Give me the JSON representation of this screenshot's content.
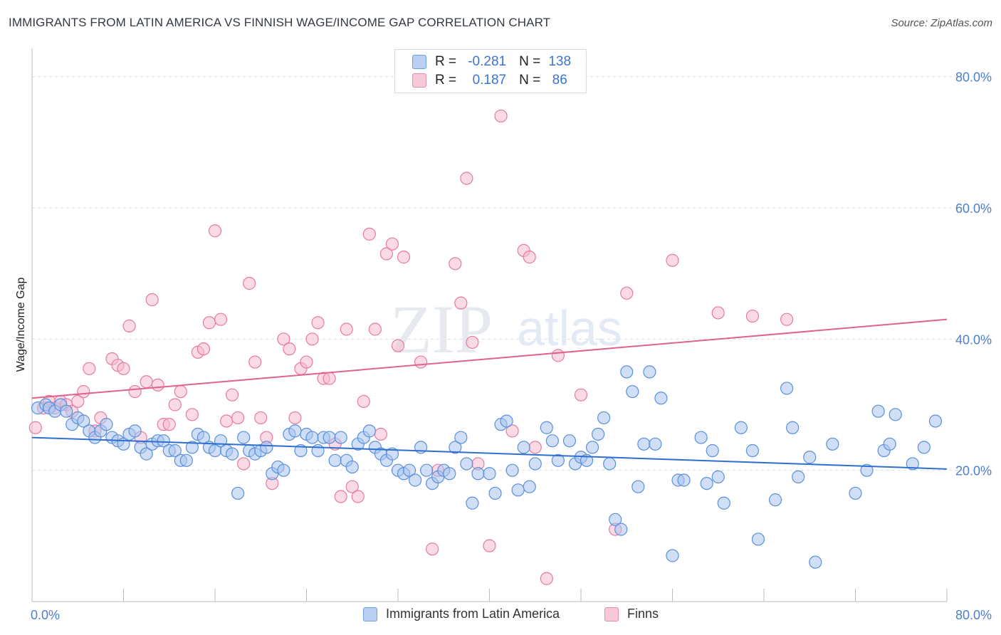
{
  "title": "IMMIGRANTS FROM LATIN AMERICA VS FINNISH WAGE/INCOME GAP CORRELATION CHART",
  "source": "Source: ZipAtlas.com",
  "watermark": {
    "zip": "ZIP",
    "atlas": "atlas"
  },
  "colors": {
    "blue_fill": "#a9c4ee",
    "blue_stroke": "#5b8fdb",
    "blue_line": "#2f6fd0",
    "pink_fill": "#f5bccd",
    "pink_stroke": "#e87a9f",
    "pink_line": "#e0628e",
    "tick_text": "#4d7fd0",
    "grid": "#dddddd"
  },
  "legend": {
    "rows": [
      {
        "r_label": "R =",
        "r_value": "-0.281",
        "n_label": "N =",
        "n_value": "138"
      },
      {
        "r_label": "R =",
        "r_value": "0.187",
        "n_label": "N =",
        "n_value": "86"
      }
    ]
  },
  "bottom_legend": [
    "Immigrants from Latin America",
    "Finns"
  ],
  "chart_data": {
    "type": "scatter",
    "title": "IMMIGRANTS FROM LATIN AMERICA VS FINNISH WAGE/INCOME GAP CORRELATION CHART",
    "xlabel": "",
    "ylabel": "Wage/Income Gap",
    "xlim": [
      0,
      80
    ],
    "ylim": [
      0,
      83
    ],
    "x_tick_labels": [
      "0.0%",
      "80.0%"
    ],
    "y_ticks": [
      20,
      40,
      60,
      80
    ],
    "y_tick_labels": [
      "20.0%",
      "40.0%",
      "60.0%",
      "80.0%"
    ],
    "grid": "horizontal dashed",
    "legend_position": "top-center",
    "series": [
      {
        "name": "Immigrants from Latin America",
        "r": -0.281,
        "n": 138,
        "trend": {
          "x": [
            0,
            80
          ],
          "y": [
            25.0,
            20.2
          ]
        },
        "points": [
          [
            0.5,
            29.5
          ],
          [
            1.2,
            30
          ],
          [
            1.5,
            29.5
          ],
          [
            2,
            29
          ],
          [
            2.5,
            30
          ],
          [
            3,
            29
          ],
          [
            3.5,
            27
          ],
          [
            4,
            28
          ],
          [
            4.5,
            27.5
          ],
          [
            5,
            26
          ],
          [
            5.5,
            25
          ],
          [
            6,
            26
          ],
          [
            6.5,
            27
          ],
          [
            7,
            25
          ],
          [
            7.5,
            24.5
          ],
          [
            8,
            24
          ],
          [
            8.5,
            25.5
          ],
          [
            9,
            26
          ],
          [
            9.5,
            23.5
          ],
          [
            10,
            22.5
          ],
          [
            10.5,
            24
          ],
          [
            11,
            24.5
          ],
          [
            11.5,
            24.5
          ],
          [
            12,
            23
          ],
          [
            12.5,
            23
          ],
          [
            13,
            21.5
          ],
          [
            13.5,
            21.5
          ],
          [
            14,
            23.5
          ],
          [
            14.5,
            25.5
          ],
          [
            15,
            25
          ],
          [
            15.5,
            23.5
          ],
          [
            16,
            23
          ],
          [
            16.5,
            24.5
          ],
          [
            17,
            23
          ],
          [
            17.5,
            22.5
          ],
          [
            18,
            16.5
          ],
          [
            18.5,
            25
          ],
          [
            19,
            23
          ],
          [
            19.5,
            22.5
          ],
          [
            20,
            23
          ],
          [
            20.5,
            23.5
          ],
          [
            21,
            19.5
          ],
          [
            21.5,
            20.5
          ],
          [
            22,
            20
          ],
          [
            22.5,
            25.5
          ],
          [
            23,
            26
          ],
          [
            23.5,
            23
          ],
          [
            24,
            25.5
          ],
          [
            24.5,
            25
          ],
          [
            25,
            23
          ],
          [
            25.5,
            25
          ],
          [
            26,
            25
          ],
          [
            26.5,
            21.5
          ],
          [
            27,
            25
          ],
          [
            27.5,
            21.5
          ],
          [
            28,
            20.5
          ],
          [
            28.5,
            24
          ],
          [
            29,
            25
          ],
          [
            29.5,
            26
          ],
          [
            30,
            23.5
          ],
          [
            30.5,
            22.5
          ],
          [
            31,
            21.5
          ],
          [
            31.5,
            22.5
          ],
          [
            32,
            20
          ],
          [
            32.5,
            19.5
          ],
          [
            33,
            20
          ],
          [
            33.5,
            18.5
          ],
          [
            34,
            23.5
          ],
          [
            34.5,
            20
          ],
          [
            35,
            18
          ],
          [
            35.5,
            19
          ],
          [
            36,
            20
          ],
          [
            36.5,
            19.5
          ],
          [
            37,
            23.5
          ],
          [
            37.5,
            25
          ],
          [
            38,
            21
          ],
          [
            38.5,
            15
          ],
          [
            39,
            19.5
          ],
          [
            40,
            19.5
          ],
          [
            40.5,
            16.5
          ],
          [
            41,
            27
          ],
          [
            41.5,
            27.5
          ],
          [
            42,
            20
          ],
          [
            42.5,
            17
          ],
          [
            43,
            23.5
          ],
          [
            43.5,
            17.5
          ],
          [
            44,
            21
          ],
          [
            45,
            26.5
          ],
          [
            45.5,
            24.5
          ],
          [
            46,
            21.5
          ],
          [
            47,
            24.5
          ],
          [
            47.5,
            21
          ],
          [
            48,
            22
          ],
          [
            48.5,
            21.5
          ],
          [
            49,
            23.5
          ],
          [
            49.5,
            25.5
          ],
          [
            50,
            28
          ],
          [
            50.5,
            21
          ],
          [
            51,
            12.5
          ],
          [
            51.5,
            11
          ],
          [
            52,
            35
          ],
          [
            52.5,
            32
          ],
          [
            53,
            17.5
          ],
          [
            53.5,
            24
          ],
          [
            54,
            35
          ],
          [
            54.5,
            24
          ],
          [
            55,
            31
          ],
          [
            56,
            7
          ],
          [
            56.5,
            18.5
          ],
          [
            57,
            18.5
          ],
          [
            58.5,
            25
          ],
          [
            59,
            18
          ],
          [
            59.5,
            23
          ],
          [
            60,
            19
          ],
          [
            60.5,
            15
          ],
          [
            62,
            26.5
          ],
          [
            63,
            23
          ],
          [
            63.5,
            9.5
          ],
          [
            65,
            15.5
          ],
          [
            66,
            32.5
          ],
          [
            66.5,
            26.5
          ],
          [
            67,
            19
          ],
          [
            68,
            22
          ],
          [
            68.5,
            6
          ],
          [
            70,
            24
          ],
          [
            72,
            16.5
          ],
          [
            73,
            20
          ],
          [
            74,
            29
          ],
          [
            74.5,
            23
          ],
          [
            75,
            24
          ],
          [
            75.5,
            28.5
          ],
          [
            77,
            21
          ],
          [
            78,
            23.5
          ],
          [
            79,
            27.5
          ]
        ]
      },
      {
        "name": "Finns",
        "r": 0.187,
        "n": 86,
        "trend": {
          "x": [
            0,
            80
          ],
          "y": [
            31.0,
            43.0
          ]
        },
        "points": [
          [
            0.3,
            26.5
          ],
          [
            1,
            29.5
          ],
          [
            1.5,
            30.5
          ],
          [
            2,
            29.5
          ],
          [
            2.5,
            30.5
          ],
          [
            3,
            30
          ],
          [
            3.5,
            29
          ],
          [
            4,
            30.5
          ],
          [
            4.5,
            32
          ],
          [
            5,
            35.5
          ],
          [
            5.5,
            26
          ],
          [
            6,
            28
          ],
          [
            7,
            37
          ],
          [
            7.5,
            36
          ],
          [
            8,
            35.5
          ],
          [
            8.5,
            42
          ],
          [
            9,
            32
          ],
          [
            9.5,
            25
          ],
          [
            10,
            33.5
          ],
          [
            10.5,
            46
          ],
          [
            11,
            33
          ],
          [
            11.5,
            27
          ],
          [
            12,
            27
          ],
          [
            12.5,
            30
          ],
          [
            13,
            32
          ],
          [
            14,
            28.5
          ],
          [
            14.5,
            38
          ],
          [
            15,
            38.5
          ],
          [
            15.5,
            42.5
          ],
          [
            16,
            56.5
          ],
          [
            16.5,
            43
          ],
          [
            17,
            27.5
          ],
          [
            17.5,
            31.5
          ],
          [
            18,
            28
          ],
          [
            18.5,
            21
          ],
          [
            19,
            48.5
          ],
          [
            19.5,
            36.5
          ],
          [
            20,
            28
          ],
          [
            20.5,
            25
          ],
          [
            21,
            18
          ],
          [
            22,
            40
          ],
          [
            22.5,
            38.5
          ],
          [
            23,
            28
          ],
          [
            23.5,
            35.5
          ],
          [
            24,
            36.5
          ],
          [
            24.5,
            40
          ],
          [
            25,
            42.5
          ],
          [
            25.5,
            34
          ],
          [
            26,
            34
          ],
          [
            26.5,
            24
          ],
          [
            27,
            16
          ],
          [
            27.5,
            41.5
          ],
          [
            28,
            17.5
          ],
          [
            28.5,
            16
          ],
          [
            29,
            30.5
          ],
          [
            29.5,
            56
          ],
          [
            30,
            41.5
          ],
          [
            30.5,
            25.5
          ],
          [
            31,
            53
          ],
          [
            31.5,
            54.5
          ],
          [
            32,
            39
          ],
          [
            32.5,
            52.5
          ],
          [
            34,
            36.5
          ],
          [
            35,
            8
          ],
          [
            35.5,
            20
          ],
          [
            37,
            51.5
          ],
          [
            37.5,
            45.5
          ],
          [
            38,
            64.5
          ],
          [
            38.5,
            39.5
          ],
          [
            39,
            21
          ],
          [
            40,
            8.5
          ],
          [
            41,
            74
          ],
          [
            42,
            26
          ],
          [
            43,
            53.5
          ],
          [
            43.5,
            52.5
          ],
          [
            44,
            23.5
          ],
          [
            45,
            3.5
          ],
          [
            46,
            37.5
          ],
          [
            48,
            31.5
          ],
          [
            51,
            11
          ],
          [
            52,
            47
          ],
          [
            56,
            52
          ],
          [
            60,
            44
          ],
          [
            63,
            43.5
          ],
          [
            66,
            43
          ]
        ]
      }
    ]
  }
}
